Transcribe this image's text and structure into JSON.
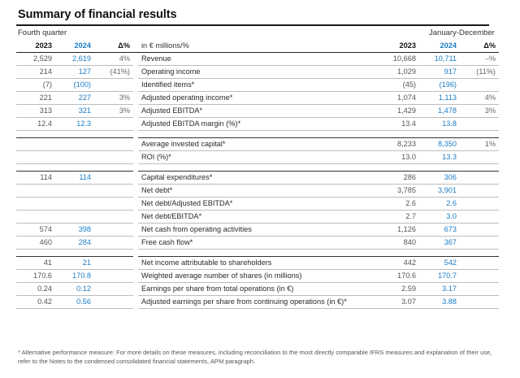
{
  "title": "Summary of financial results",
  "period_left": "Fourth quarter",
  "period_right": "January-December",
  "header": {
    "y2023": "2023",
    "y2024": "2024",
    "delta": "Δ%",
    "unit": "in € millions/%",
    "ry2023": "2023",
    "ry2024": "2024",
    "rdelta": "Δ%"
  },
  "groups": [
    {
      "rows": [
        {
          "q23": "2,529",
          "q24": "2,619",
          "qd": "4%",
          "label": "Revenue",
          "y23": "10,668",
          "y24": "10,711",
          "yd": "–%"
        },
        {
          "q23": "214",
          "q24": "127",
          "qd": "(41%)",
          "label": "Operating income",
          "y23": "1,029",
          "y24": "917",
          "yd": "(11%)"
        },
        {
          "q23": "(7)",
          "q24": "(100)",
          "qd": "",
          "label": "Identified items*",
          "y23": "(45)",
          "y24": "(196)",
          "yd": ""
        },
        {
          "q23": "221",
          "q24": "227",
          "qd": "3%",
          "label": "Adjusted operating income*",
          "y23": "1,074",
          "y24": "1,113",
          "yd": "4%"
        },
        {
          "q23": "313",
          "q24": "321",
          "qd": "3%",
          "label": "Adjusted EBITDA*",
          "y23": "1,429",
          "y24": "1,478",
          "yd": "3%"
        },
        {
          "q23": "12.4",
          "q24": "12.3",
          "qd": "",
          "label": "Adjusted EBITDA margin (%)*",
          "y23": "13.4",
          "y24": "13.8",
          "yd": ""
        }
      ]
    },
    {
      "rows": [
        {
          "q23": "",
          "q24": "",
          "qd": "",
          "label": "Average invested capital*",
          "y23": "8,233",
          "y24": "8,350",
          "yd": "1%"
        },
        {
          "q23": "",
          "q24": "",
          "qd": "",
          "label": "ROI (%)*",
          "y23": "13.0",
          "y24": "13.3",
          "yd": ""
        }
      ]
    },
    {
      "rows": [
        {
          "q23": "114",
          "q24": "114",
          "qd": "",
          "label": "Capital expenditures*",
          "y23": "286",
          "y24": "306",
          "yd": ""
        },
        {
          "q23": "",
          "q24": "",
          "qd": "",
          "label": "Net debt*",
          "y23": "3,785",
          "y24": "3,901",
          "yd": ""
        },
        {
          "q23": "",
          "q24": "",
          "qd": "",
          "label": "Net debt/Adjusted EBITDA*",
          "y23": "2.6",
          "y24": "2.6",
          "yd": ""
        },
        {
          "q23": "",
          "q24": "",
          "qd": "",
          "label": "Net debt/EBITDA*",
          "y23": "2.7",
          "y24": "3.0",
          "yd": ""
        },
        {
          "q23": "574",
          "q24": "398",
          "qd": "",
          "label": "Net cash from operating activities",
          "y23": "1,126",
          "y24": "673",
          "yd": ""
        },
        {
          "q23": "460",
          "q24": "284",
          "qd": "",
          "label": "Free cash flow*",
          "y23": "840",
          "y24": "367",
          "yd": ""
        }
      ]
    },
    {
      "rows": [
        {
          "q23": "41",
          "q24": "21",
          "qd": "",
          "label": "Net income attributable to shareholders",
          "y23": "442",
          "y24": "542",
          "yd": ""
        },
        {
          "q23": "170.6",
          "q24": "170.8",
          "qd": "",
          "label": "Weighted average number of shares (in millions)",
          "y23": "170.6",
          "y24": "170.7",
          "yd": ""
        },
        {
          "q23": "0.24",
          "q24": "0.12",
          "qd": "",
          "label": "Earnings per share from total operations (in €)",
          "y23": "2.59",
          "y24": "3.17",
          "yd": ""
        },
        {
          "q23": "0.42",
          "q24": "0.56",
          "qd": "",
          "label": "Adjusted earnings per share from continuing operations (in €)*",
          "y23": "3.07",
          "y24": "3.88",
          "yd": ""
        }
      ]
    }
  ],
  "footnote": "* Alternative performance measure: For more details on these measures, including reconciliation to the most directly comparable IFRS measures and explanation of their use, refer to the Notes to the condensed consolidated financial statements, APM paragraph.",
  "colors": {
    "accent_2024": "#1a7dc7",
    "text": "#2a2a2a"
  }
}
